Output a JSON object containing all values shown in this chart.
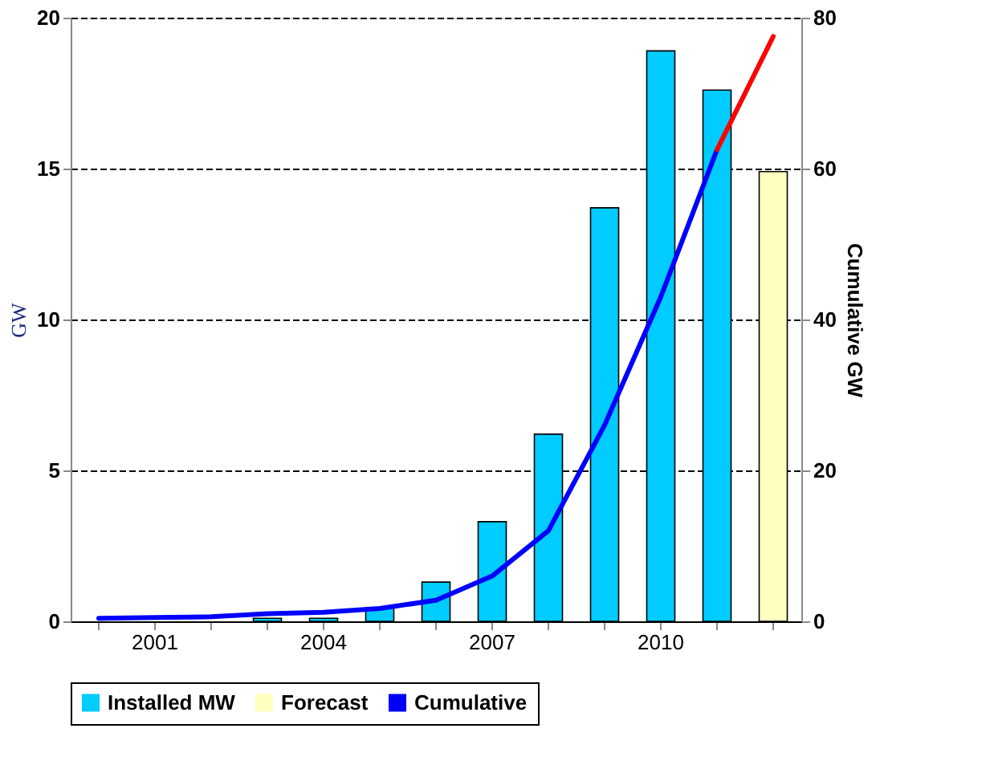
{
  "chart_data": {
    "type": "bar",
    "categories": [
      null,
      "2001",
      null,
      null,
      "2004",
      null,
      null,
      "2007",
      null,
      null,
      "2010",
      null,
      null
    ],
    "ylabel": "GW",
    "y2label": "Cumulative  GW",
    "ylim": [
      0,
      20
    ],
    "yticks": [
      0,
      5,
      10,
      15,
      20
    ],
    "y2lim": [
      0,
      80
    ],
    "y2ticks": [
      0,
      20,
      40,
      60,
      80
    ],
    "grid": "y",
    "legend": "bottom",
    "series": [
      {
        "name": "Installed MW",
        "color": "#00ccff",
        "values": [
          null,
          null,
          null,
          0.1,
          0.1,
          0.45,
          1.3,
          3.3,
          6.2,
          13.7,
          18.9,
          17.6,
          null
        ]
      },
      {
        "name": "Forecast",
        "color": "#ffffc0",
        "values": [
          null,
          null,
          null,
          null,
          null,
          null,
          null,
          null,
          null,
          null,
          null,
          null,
          14.9
        ]
      },
      {
        "name": "Cumulative",
        "type": "line",
        "axis": "y2",
        "color": "#0000ff",
        "values": [
          0.4,
          0.5,
          0.6,
          1,
          1.2,
          1.7,
          2.8,
          6,
          12,
          26,
          43,
          62.5,
          null
        ]
      },
      {
        "type": "line",
        "axis": "y2",
        "color": "#ff0000",
        "values": [
          null,
          null,
          null,
          null,
          null,
          null,
          null,
          null,
          null,
          null,
          null,
          62.5,
          77.5
        ]
      }
    ]
  }
}
